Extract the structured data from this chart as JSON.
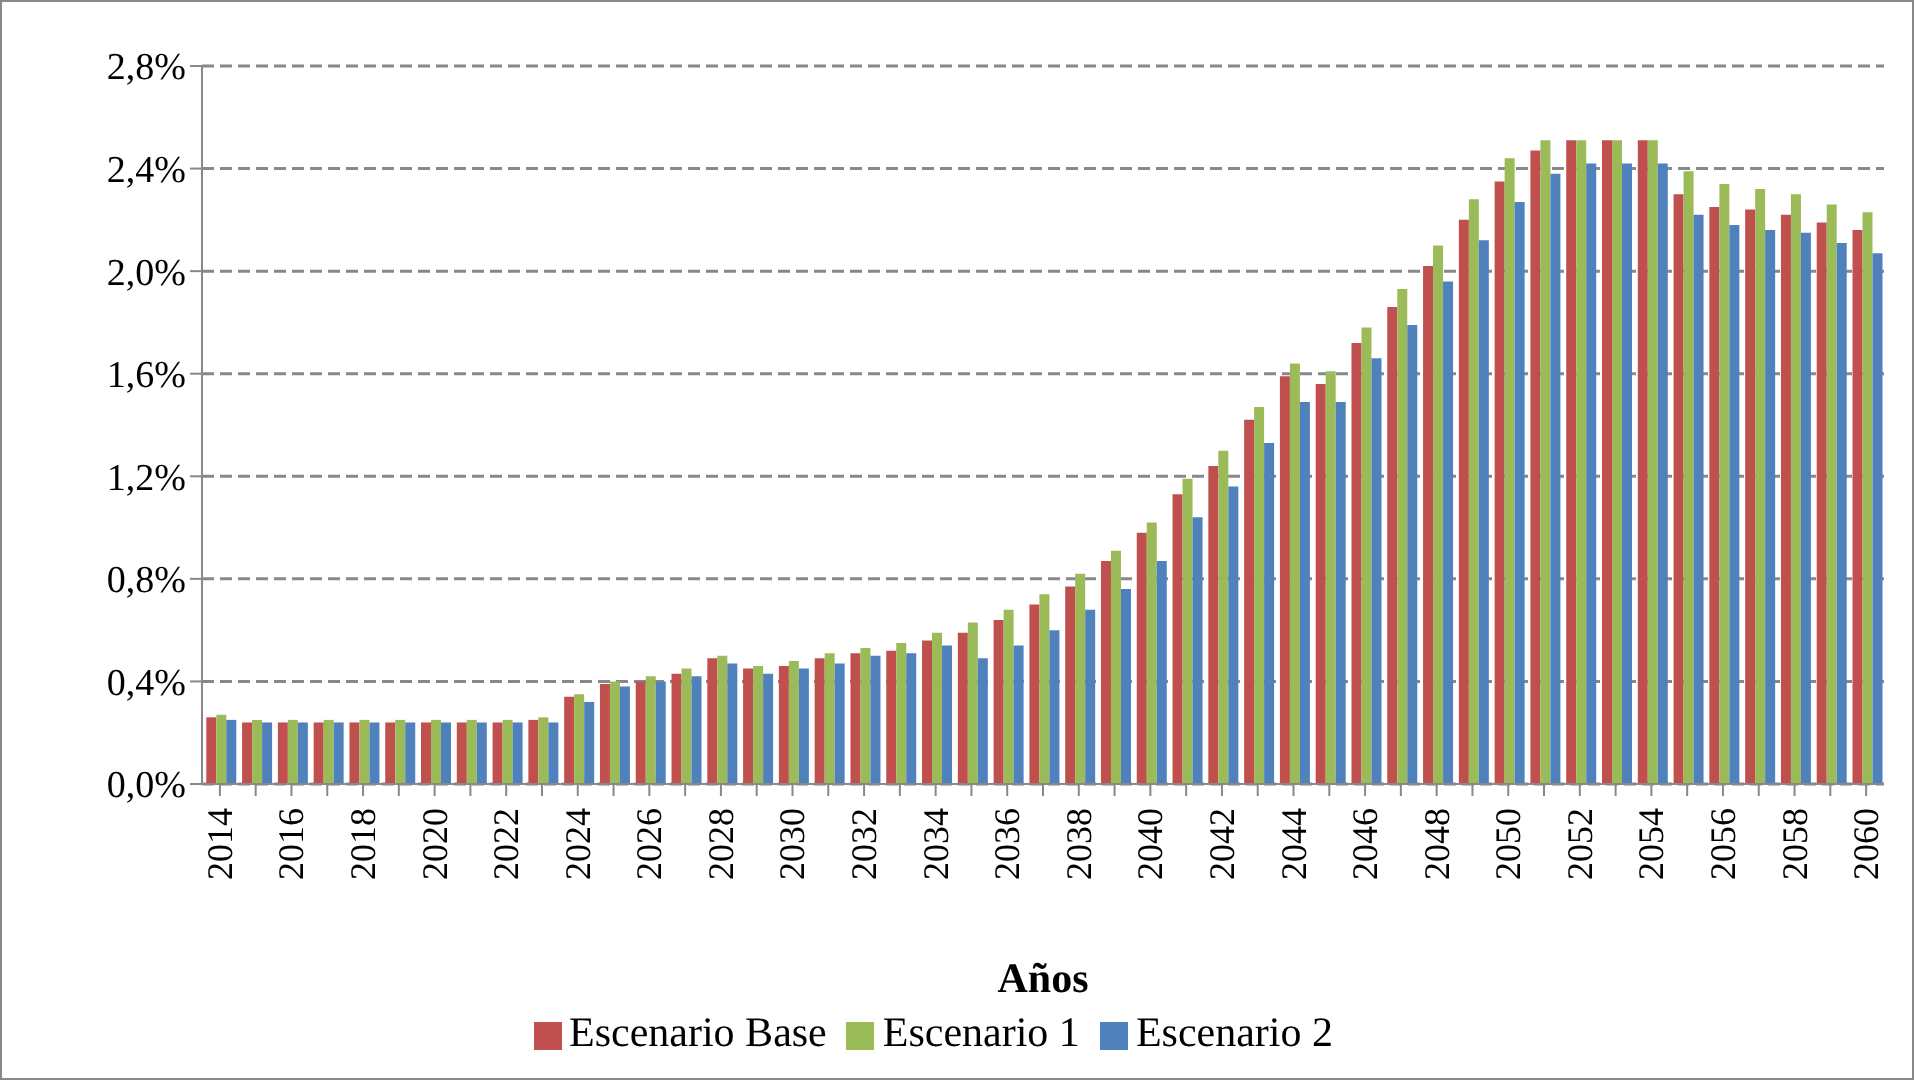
{
  "chart_data": {
    "type": "bar",
    "xlabel": "Años",
    "categories": [
      "2014",
      null,
      "2016",
      null,
      "2018",
      null,
      "2020",
      null,
      "2022",
      null,
      "2024",
      null,
      "2026",
      null,
      "2028",
      null,
      "2030",
      null,
      "2032",
      null,
      "2034",
      null,
      "2036",
      null,
      "2038",
      null,
      "2040",
      null,
      "2042",
      null,
      "2044",
      null,
      "2046",
      null,
      "2048",
      null,
      "2050",
      null,
      "2052",
      null,
      "2054",
      null,
      "2056",
      null,
      "2058",
      null,
      "2060"
    ],
    "series": [
      {
        "name": "Escenario Base",
        "color": "#c0504d",
        "values": [
          0.26,
          0.24,
          0.24,
          0.24,
          0.24,
          0.24,
          0.24,
          0.24,
          0.24,
          0.25,
          0.34,
          0.39,
          0.4,
          0.43,
          0.49,
          0.45,
          0.46,
          0.49,
          0.51,
          0.52,
          0.56,
          0.59,
          0.64,
          0.7,
          0.77,
          0.87,
          0.98,
          1.13,
          1.24,
          1.42,
          1.59,
          1.56,
          1.72,
          1.86,
          2.02,
          2.2,
          2.35,
          2.47,
          2.51,
          2.51,
          2.51,
          2.3,
          2.25,
          2.24,
          2.22,
          2.19,
          2.16
        ]
      },
      {
        "name": "Escenario 1",
        "color": "#9bbb59",
        "values": [
          0.27,
          0.25,
          0.25,
          0.25,
          0.25,
          0.25,
          0.25,
          0.25,
          0.25,
          0.26,
          0.35,
          0.4,
          0.42,
          0.45,
          0.5,
          0.46,
          0.48,
          0.51,
          0.53,
          0.55,
          0.59,
          0.63,
          0.68,
          0.74,
          0.82,
          0.91,
          1.02,
          1.19,
          1.3,
          1.47,
          1.64,
          1.61,
          1.78,
          1.93,
          2.1,
          2.28,
          2.44,
          2.51,
          2.51,
          2.51,
          2.51,
          2.39,
          2.34,
          2.32,
          2.3,
          2.26,
          2.23
        ]
      },
      {
        "name": "Escenario 2",
        "color": "#4f81bd",
        "values": [
          0.25,
          0.24,
          0.24,
          0.24,
          0.24,
          0.24,
          0.24,
          0.24,
          0.24,
          0.24,
          0.32,
          0.38,
          0.4,
          0.42,
          0.47,
          0.43,
          0.45,
          0.47,
          0.5,
          0.51,
          0.54,
          0.49,
          0.54,
          0.6,
          0.68,
          0.76,
          0.87,
          1.04,
          1.16,
          1.33,
          1.49,
          1.49,
          1.66,
          1.79,
          1.96,
          2.12,
          2.27,
          2.38,
          2.42,
          2.42,
          2.42,
          2.22,
          2.18,
          2.16,
          2.15,
          2.11,
          2.07
        ]
      }
    ],
    "ylim": [
      0,
      2.8
    ],
    "yticks": [
      {
        "value": 0,
        "label": "0,0%"
      },
      {
        "value": 0.4,
        "label": "0,4%"
      },
      {
        "value": 0.8,
        "label": "0,8%"
      },
      {
        "value": 1.2,
        "label": "1,2%"
      },
      {
        "value": 1.6,
        "label": "1,6%"
      },
      {
        "value": 2.0,
        "label": "2,0%"
      },
      {
        "value": 2.4,
        "label": "2,4%"
      },
      {
        "value": 2.8,
        "label": "2,8%"
      }
    ],
    "grid": "y",
    "legend": "bottom"
  }
}
